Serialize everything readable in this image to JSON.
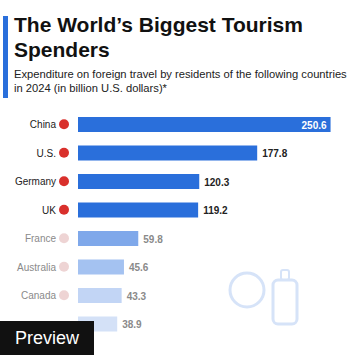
{
  "chart_data": {
    "type": "bar",
    "title": "The World’s Biggest Tourism Spenders",
    "subtitle": "Expenditure on foreign travel by residents of the following countries in 2024 (in billion U.S. dollars)*",
    "categories": [
      "China",
      "U.S.",
      "Germany",
      "UK",
      "France",
      "Australia",
      "Canada",
      null
    ],
    "values": [
      250.6,
      177.8,
      120.3,
      119.2,
      59.8,
      45.6,
      43.3,
      38.9
    ],
    "colors": [
      "#2a6fdb",
      "#2a6fdb",
      "#2a6fdb",
      "#2a6fdb",
      "#7fa8ea",
      "#a4c2f1",
      "#c2d5f5",
      "#d4e1f7"
    ],
    "orientation": "horizontal",
    "xlim": [
      0,
      255
    ],
    "xticks": [
      0,
      255
    ],
    "grid": false,
    "data_labels": true,
    "tick_labels": "y",
    "badge": "Preview"
  }
}
